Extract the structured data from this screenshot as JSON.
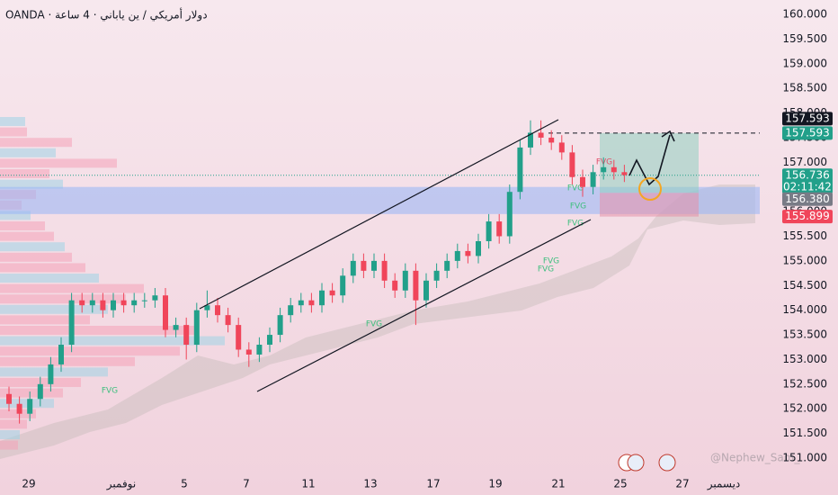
{
  "chart_data": {
    "type": "candlestick",
    "title": "OANDA · دولار أمريكي / ين ياباني · 4 ساعة",
    "open": [
      152.3,
      152.1,
      151.9,
      152.2,
      152.5,
      152.9,
      153.3,
      154.2,
      154.1,
      154.2,
      154.0,
      154.2,
      154.1,
      154.2,
      154.2,
      154.3,
      153.6,
      153.7,
      153.3,
      154.0,
      154.1,
      153.9,
      153.7,
      153.2,
      153.1,
      153.3,
      153.5,
      153.9,
      154.1,
      154.2,
      154.1,
      154.4,
      154.3,
      154.7,
      155.0,
      154.8,
      155.0,
      154.6,
      154.4,
      154.8,
      154.2,
      154.6,
      154.8,
      155.0,
      155.2,
      155.1,
      155.4,
      155.8,
      155.5,
      156.4,
      157.3,
      157.6,
      157.5,
      157.4,
      157.2,
      156.7,
      156.5,
      156.8,
      156.9,
      156.8
    ],
    "high": [
      152.45,
      152.25,
      152.35,
      152.65,
      153.05,
      153.45,
      154.35,
      154.35,
      154.35,
      154.35,
      154.35,
      154.35,
      154.35,
      154.35,
      154.45,
      154.45,
      153.85,
      153.85,
      154.15,
      154.4,
      154.25,
      154.05,
      153.85,
      153.35,
      153.45,
      153.65,
      154.05,
      154.25,
      154.35,
      154.35,
      154.55,
      154.55,
      154.85,
      155.15,
      155.15,
      155.15,
      155.15,
      154.75,
      154.95,
      154.95,
      154.75,
      154.95,
      155.15,
      155.35,
      155.35,
      155.55,
      155.95,
      155.95,
      156.55,
      157.45,
      157.85,
      157.85,
      157.65,
      157.55,
      157.35,
      156.85,
      156.95,
      157.1,
      157.05,
      156.95
    ],
    "low": [
      151.95,
      151.7,
      151.75,
      152.05,
      152.35,
      152.75,
      153.15,
      153.95,
      153.95,
      153.85,
      153.85,
      153.95,
      153.95,
      154.05,
      154.05,
      153.45,
      153.45,
      153.0,
      153.15,
      153.85,
      153.75,
      153.55,
      153.05,
      152.85,
      152.95,
      153.15,
      153.35,
      153.75,
      153.95,
      153.95,
      153.95,
      154.15,
      154.15,
      154.55,
      154.65,
      154.65,
      154.45,
      154.25,
      154.25,
      153.7,
      154.05,
      154.45,
      154.65,
      154.85,
      154.95,
      154.95,
      155.25,
      155.35,
      155.35,
      156.25,
      157.15,
      157.35,
      157.25,
      157.05,
      156.55,
      156.3,
      156.35,
      156.65,
      156.65,
      156.6
    ],
    "close": [
      152.1,
      151.9,
      152.2,
      152.5,
      152.9,
      153.3,
      154.2,
      154.1,
      154.2,
      154.0,
      154.2,
      154.1,
      154.2,
      154.2,
      154.3,
      153.6,
      153.7,
      153.3,
      154.0,
      154.1,
      153.9,
      153.7,
      153.2,
      153.1,
      153.3,
      153.5,
      153.9,
      154.1,
      154.2,
      154.1,
      154.4,
      154.3,
      154.7,
      155.0,
      154.8,
      155.0,
      154.6,
      154.4,
      154.8,
      154.2,
      154.6,
      154.8,
      155.0,
      155.2,
      155.1,
      155.4,
      155.8,
      155.5,
      156.4,
      157.3,
      157.6,
      157.5,
      157.4,
      157.2,
      156.7,
      156.5,
      156.8,
      156.9,
      156.8,
      156.74
    ],
    "up_color": "#22a08a",
    "down_color": "#f0455a",
    "ylim": [
      151.0,
      160.0
    ],
    "yticks": [
      {
        "value": 160,
        "label": "160.000"
      },
      {
        "value": 159.5,
        "label": "159.500"
      },
      {
        "value": 159,
        "label": "159.000"
      },
      {
        "value": 158.5,
        "label": "158.500"
      },
      {
        "value": 158,
        "label": "158.000"
      },
      {
        "value": 157.5,
        "label": "157.500"
      },
      {
        "value": 157,
        "label": "157.000"
      },
      {
        "value": 156.5,
        "label": "156.500"
      },
      {
        "value": 156,
        "label": "156.000"
      },
      {
        "value": 155.5,
        "label": "155.500"
      },
      {
        "value": 155,
        "label": "155.000"
      },
      {
        "value": 154.5,
        "label": "154.500"
      },
      {
        "value": 154,
        "label": "154.000"
      },
      {
        "value": 153.5,
        "label": "153.500"
      },
      {
        "value": 153,
        "label": "153.000"
      },
      {
        "value": 152.5,
        "label": "152.500"
      },
      {
        "value": 152,
        "label": "152.000"
      },
      {
        "value": 151.5,
        "label": "151.500"
      },
      {
        "value": 151,
        "label": "151.000"
      }
    ],
    "x_labels": [
      "29",
      "نوفمبر",
      "5",
      "7",
      "11",
      "13",
      "17",
      "19",
      "21",
      "25",
      "27",
      "ديسمبر"
    ],
    "price_tags": [
      {
        "price": 157.593,
        "color": "#131722"
      },
      {
        "price": 157.593,
        "color": "#22a08a"
      },
      {
        "price": 156.736,
        "color": "#22a08a",
        "timer": "02:11:42"
      },
      {
        "price": {
          "value": 156.38,
          "label": "156.380"
        },
        "color": "#787b86"
      },
      {
        "price": 155.899,
        "color": "#f0455a"
      }
    ],
    "demand_zone": [
      155.95,
      156.5
    ],
    "fvg_labels": [
      "FVG",
      "FVG",
      "FVG",
      "FVG",
      "FVG",
      "FVG",
      "FVG",
      "FVG"
    ],
    "watermark": "@Nephew_Sam_"
  }
}
